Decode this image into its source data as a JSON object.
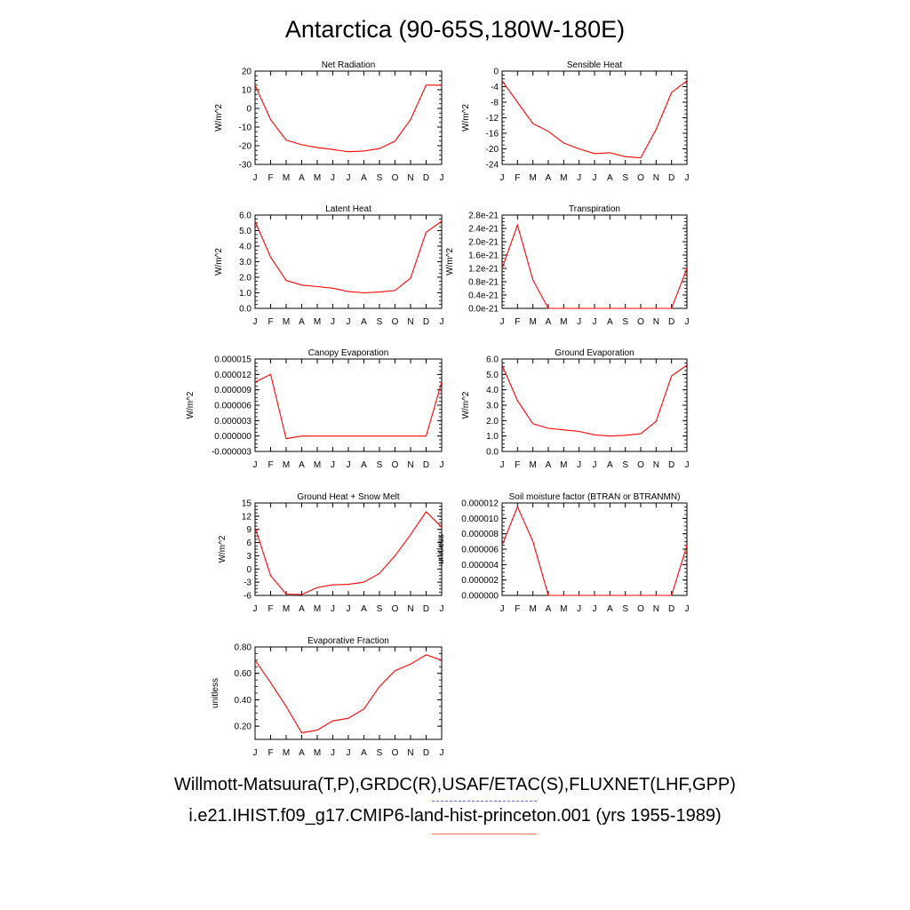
{
  "title": "Antarctica (90-65S,180W-180E)",
  "footer": {
    "line1": "Willmott-Matsuura(T,P),GRDC(R),USAF/ETAC(S),FLUXNET(LHF,GPP)",
    "line2": "i.e21.IHIST.f09_g17.CMIP6-land-hist-princeton.001 (yrs 1955-1989)",
    "line1_color": "#6666dd",
    "line2_color": "#ff6666"
  },
  "series_color": "#ff0000",
  "chart_data": [
    {
      "type": "line",
      "title": "Net Radiation",
      "ylabel": "W/m^2",
      "categories": [
        "J",
        "F",
        "M",
        "A",
        "M",
        "J",
        "J",
        "A",
        "S",
        "O",
        "N",
        "D",
        "J"
      ],
      "values": [
        12.5,
        -6,
        -17,
        -19.5,
        -21,
        -22,
        -23.2,
        -22.8,
        -21.5,
        -17.5,
        -6,
        12.5,
        12.5
      ],
      "ylim": [
        -30,
        20
      ],
      "yticks": [
        20,
        10,
        0,
        -10,
        -20,
        -30
      ],
      "ytick_labels": [
        "20",
        "10",
        "0",
        "-10",
        "-20",
        "-30"
      ]
    },
    {
      "type": "line",
      "title": "Sensible Heat",
      "ylabel": "W/m^2",
      "categories": [
        "J",
        "F",
        "M",
        "A",
        "M",
        "J",
        "J",
        "A",
        "S",
        "O",
        "N",
        "D",
        "J"
      ],
      "values": [
        -2.5,
        -8,
        -13.5,
        -15.5,
        -18.5,
        -20,
        -21.2,
        -21,
        -22,
        -22.3,
        -15,
        -5.5,
        -2.5
      ],
      "ylim": [
        -24,
        0
      ],
      "yticks": [
        0,
        -4,
        -8,
        -12,
        -16,
        -20,
        -24
      ],
      "ytick_labels": [
        "0",
        "-4",
        "-8",
        "-12",
        "-16",
        "-20",
        "-24"
      ]
    },
    {
      "type": "line",
      "title": "Latent Heat",
      "ylabel": "W/m^2",
      "categories": [
        "J",
        "F",
        "M",
        "A",
        "M",
        "J",
        "J",
        "A",
        "S",
        "O",
        "N",
        "D",
        "J"
      ],
      "values": [
        5.6,
        3.3,
        1.8,
        1.5,
        1.4,
        1.3,
        1.08,
        1.0,
        1.05,
        1.15,
        1.95,
        4.9,
        5.6
      ],
      "ylim": [
        0,
        6
      ],
      "yticks": [
        6,
        5,
        4,
        3,
        2,
        1,
        0
      ],
      "ytick_labels": [
        "6.0",
        "5.0",
        "4.0",
        "3.0",
        "2.0",
        "1.0",
        "0.0"
      ]
    },
    {
      "type": "line",
      "title": "Transpiration",
      "ylabel": "W/m^2",
      "categories": [
        "J",
        "F",
        "M",
        "A",
        "M",
        "J",
        "J",
        "A",
        "S",
        "O",
        "N",
        "D",
        "J"
      ],
      "values": [
        1.2e-21,
        2.5e-21,
        8.5e-22,
        0,
        0,
        0,
        0,
        0,
        0,
        0,
        0,
        0,
        1.2e-21
      ],
      "ylim": [
        0,
        2.8e-21
      ],
      "yticks": [
        2.8e-21,
        2.4e-21,
        2e-21,
        1.6e-21,
        1.2e-21,
        8e-22,
        4e-22,
        0
      ],
      "ytick_labels": [
        "2.8e-21",
        "2.4e-21",
        "2.0e-21",
        "1.6e-21",
        "1.2e-21",
        "0.8e-21",
        "0.4e-21",
        "0.0e-21"
      ]
    },
    {
      "type": "line",
      "title": "Canopy Evaporation",
      "ylabel": "W/m^2",
      "categories": [
        "J",
        "F",
        "M",
        "A",
        "M",
        "J",
        "J",
        "A",
        "S",
        "O",
        "N",
        "D",
        "J"
      ],
      "values": [
        1.05e-05,
        1.2e-05,
        -5e-07,
        0,
        0,
        0,
        0,
        0,
        0,
        0,
        0,
        0,
        1.05e-05
      ],
      "ylim": [
        -3e-06,
        1.5e-05
      ],
      "yticks": [
        1.5e-05,
        1.2e-05,
        9e-06,
        6e-06,
        3e-06,
        0,
        -3e-06
      ],
      "ytick_labels": [
        "0.000015",
        "0.000012",
        "0.000009",
        "0.000006",
        "0.000003",
        "0.000000",
        "-0.000003"
      ]
    },
    {
      "type": "line",
      "title": "Ground Evaporation",
      "ylabel": "W/m^2",
      "categories": [
        "J",
        "F",
        "M",
        "A",
        "M",
        "J",
        "J",
        "A",
        "S",
        "O",
        "N",
        "D",
        "J"
      ],
      "values": [
        5.6,
        3.3,
        1.8,
        1.5,
        1.4,
        1.3,
        1.08,
        1.0,
        1.05,
        1.15,
        1.95,
        4.9,
        5.6
      ],
      "ylim": [
        0,
        6
      ],
      "yticks": [
        6,
        5,
        4,
        3,
        2,
        1,
        0
      ],
      "ytick_labels": [
        "6.0",
        "5.0",
        "4.0",
        "3.0",
        "2.0",
        "1.0",
        "0.0"
      ]
    },
    {
      "type": "line",
      "title": "Ground Heat + Snow Melt",
      "ylabel": "W/m^2",
      "categories": [
        "J",
        "F",
        "M",
        "A",
        "M",
        "J",
        "J",
        "A",
        "S",
        "O",
        "N",
        "D",
        "J"
      ],
      "values": [
        9.5,
        -1.5,
        -5.7,
        -5.8,
        -4.2,
        -3.6,
        -3.5,
        -3.0,
        -1.0,
        3.0,
        7.8,
        13.0,
        9.5
      ],
      "ylim": [
        -6,
        15
      ],
      "yticks": [
        15,
        12,
        9,
        6,
        3,
        0,
        -3,
        -6
      ],
      "ytick_labels": [
        "15",
        "12",
        "9",
        "6",
        "3",
        "0",
        "-3",
        "-6"
      ]
    },
    {
      "type": "line",
      "title": "Soil moisture factor (BTRAN or BTRANMN)",
      "ylabel": "unitless",
      "categories": [
        "J",
        "F",
        "M",
        "A",
        "M",
        "J",
        "J",
        "A",
        "S",
        "O",
        "N",
        "D",
        "J"
      ],
      "values": [
        6.5e-06,
        1.15e-05,
        7e-06,
        0,
        0,
        0,
        0,
        0,
        0,
        0,
        0,
        0,
        6.5e-06
      ],
      "ylim": [
        0,
        1.2e-05
      ],
      "yticks": [
        1.2e-05,
        1e-05,
        8e-06,
        6e-06,
        4e-06,
        2e-06,
        0
      ],
      "ytick_labels": [
        "0.000012",
        "0.000010",
        "0.000008",
        "0.000006",
        "0.000004",
        "0.000002",
        "0.000000"
      ]
    },
    {
      "type": "line",
      "title": "Evaporative Fraction",
      "ylabel": "unitless",
      "categories": [
        "J",
        "F",
        "M",
        "A",
        "M",
        "J",
        "J",
        "A",
        "S",
        "O",
        "N",
        "D",
        "J"
      ],
      "values": [
        0.7,
        0.53,
        0.35,
        0.15,
        0.17,
        0.24,
        0.26,
        0.33,
        0.5,
        0.62,
        0.67,
        0.74,
        0.7
      ],
      "ylim": [
        0.1,
        0.8
      ],
      "yticks": [
        0.8,
        0.6,
        0.4,
        0.2
      ],
      "ytick_labels": [
        "0.80",
        "0.60",
        "0.40",
        "0.20"
      ]
    }
  ]
}
